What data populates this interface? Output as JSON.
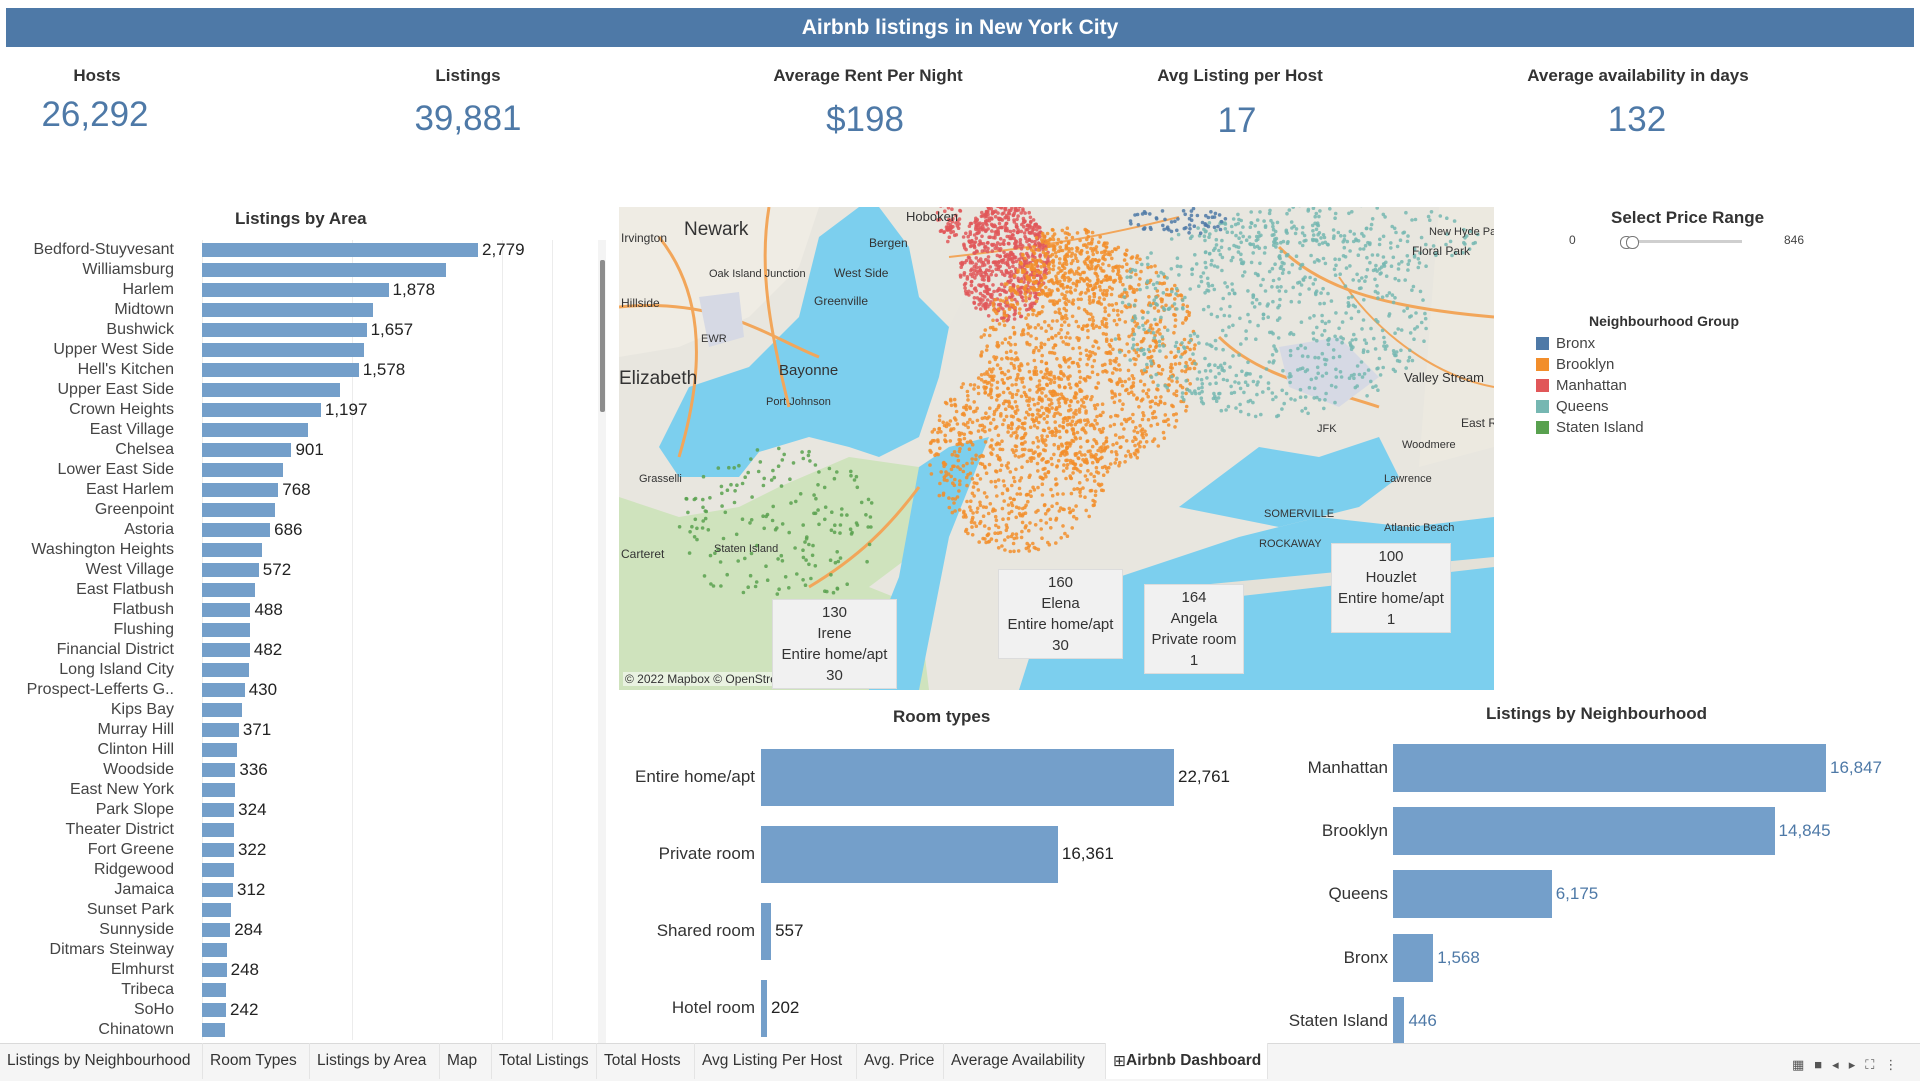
{
  "dashboard": {
    "title": "Airbnb listings in New York City"
  },
  "kpis": [
    {
      "label": "Hosts",
      "value": "26,292"
    },
    {
      "label": "Listings",
      "value": "39,881"
    },
    {
      "label": "Average Rent Per Night",
      "value": "$198"
    },
    {
      "label": "Avg Listing per Host",
      "value": "17"
    },
    {
      "label": "Average availability in days",
      "value": "132"
    }
  ],
  "area_chart": {
    "title": "Listings by Area"
  },
  "map": {
    "attribution": "© 2022 Mapbox © OpenStreetMap",
    "place_labels": [
      "Newark",
      "Elizabeth",
      "Bayonne",
      "Hoboken",
      "Bergen",
      "West Side",
      "Greenville",
      "Oak Island Junction",
      "EWR",
      "JFK",
      "Staten Island",
      "Grasselli",
      "Port Johnson",
      "Woodmere",
      "Lawrence",
      "East R",
      "Valley Stream",
      "New Hyde Park",
      "Floral Park",
      "ROCKAWAY",
      "SOMERVILLE",
      "Atlantic Beach",
      "Carteret",
      "Irvington",
      "Hillside"
    ],
    "tooltips": [
      {
        "lines": [
          "130",
          "Irene",
          "Entire home/apt",
          "30"
        ]
      },
      {
        "lines": [
          "160",
          "Elena",
          "Entire home/apt",
          "30"
        ]
      },
      {
        "lines": [
          "164",
          "Angela",
          "Private room",
          "1"
        ]
      },
      {
        "lines": [
          "100",
          "Houzlet",
          "Entire home/apt",
          "1"
        ]
      }
    ]
  },
  "price_filter": {
    "title": "Select Price Range",
    "min": "0",
    "max": "846"
  },
  "legend": {
    "title": "Neighbourhood Group",
    "items": [
      {
        "label": "Bronx",
        "color": "#4e79a7"
      },
      {
        "label": "Brooklyn",
        "color": "#f28e2b"
      },
      {
        "label": "Manhattan",
        "color": "#e15759"
      },
      {
        "label": "Queens",
        "color": "#76b7b2"
      },
      {
        "label": "Staten Island",
        "color": "#59a14f"
      }
    ]
  },
  "chart_data": [
    {
      "type": "bar",
      "title": "Listings by Area",
      "orientation": "horizontal",
      "categories": [
        "Bedford-Stuyvesant",
        "Williamsburg",
        "Harlem",
        "Midtown",
        "Bushwick",
        "Upper West Side",
        "Hell's Kitchen",
        "Upper East Side",
        "Crown Heights",
        "East Village",
        "Chelsea",
        "Lower East Side",
        "East Harlem",
        "Greenpoint",
        "Astoria",
        "Washington Heights",
        "West Village",
        "East Flatbush",
        "Flatbush",
        "Flushing",
        "Financial District",
        "Long Island City",
        "Prospect-Lefferts G..",
        "Kips Bay",
        "Murray Hill",
        "Clinton Hill",
        "Woodside",
        "East New York",
        "Park Slope",
        "Theater District",
        "Fort Greene",
        "Ridgewood",
        "Jamaica",
        "Sunset Park",
        "Sunnyside",
        "Ditmars Steinway",
        "Elmhurst",
        "Tribeca",
        "SoHo",
        "Chinatown"
      ],
      "values": [
        2779,
        2460,
        1878,
        1720,
        1657,
        1635,
        1578,
        1390,
        1197,
        1070,
        901,
        820,
        768,
        730,
        686,
        600,
        572,
        530,
        488,
        480,
        482,
        475,
        430,
        400,
        371,
        355,
        336,
        330,
        324,
        323,
        322,
        318,
        312,
        295,
        284,
        250,
        248,
        245,
        242,
        235
      ],
      "data_labels": [
        "2,779",
        "",
        "1,878",
        "",
        "1,657",
        "",
        "1,578",
        "",
        "1,197",
        "",
        "901",
        "",
        "768",
        "",
        "686",
        "",
        "572",
        "",
        "488",
        "",
        "482",
        "",
        "430",
        "",
        "371",
        "",
        "336",
        "",
        "324",
        "",
        "322",
        "",
        "312",
        "",
        "284",
        "",
        "248",
        "",
        "242",
        ""
      ],
      "xlim": [
        0,
        3000
      ]
    },
    {
      "type": "bar",
      "title": "Room types",
      "orientation": "horizontal",
      "categories": [
        "Entire home/apt",
        "Private room",
        "Shared room",
        "Hotel room"
      ],
      "values": [
        22761,
        16361,
        557,
        202
      ],
      "data_labels": [
        "22,761",
        "16,361",
        "557",
        "202"
      ]
    },
    {
      "type": "bar",
      "title": "Listings by Neighbourhood",
      "orientation": "horizontal",
      "categories": [
        "Manhattan",
        "Brooklyn",
        "Queens",
        "Bronx",
        "Staten Island"
      ],
      "values": [
        16847,
        14845,
        6175,
        1568,
        446
      ],
      "data_labels": [
        "16,847",
        "14,845",
        "6,175",
        "1,568",
        "446"
      ]
    }
  ],
  "tabs": [
    {
      "label": "Listings by Neighbourhood"
    },
    {
      "label": "Room Types"
    },
    {
      "label": "Listings by Area"
    },
    {
      "label": "Map"
    },
    {
      "label": "Total Listings"
    },
    {
      "label": "Total Hosts"
    },
    {
      "label": "Avg Listing Per Host"
    },
    {
      "label": "Avg. Price"
    },
    {
      "label": "Average Availability"
    },
    {
      "label": "Airbnb Dashboard",
      "active": true
    }
  ]
}
